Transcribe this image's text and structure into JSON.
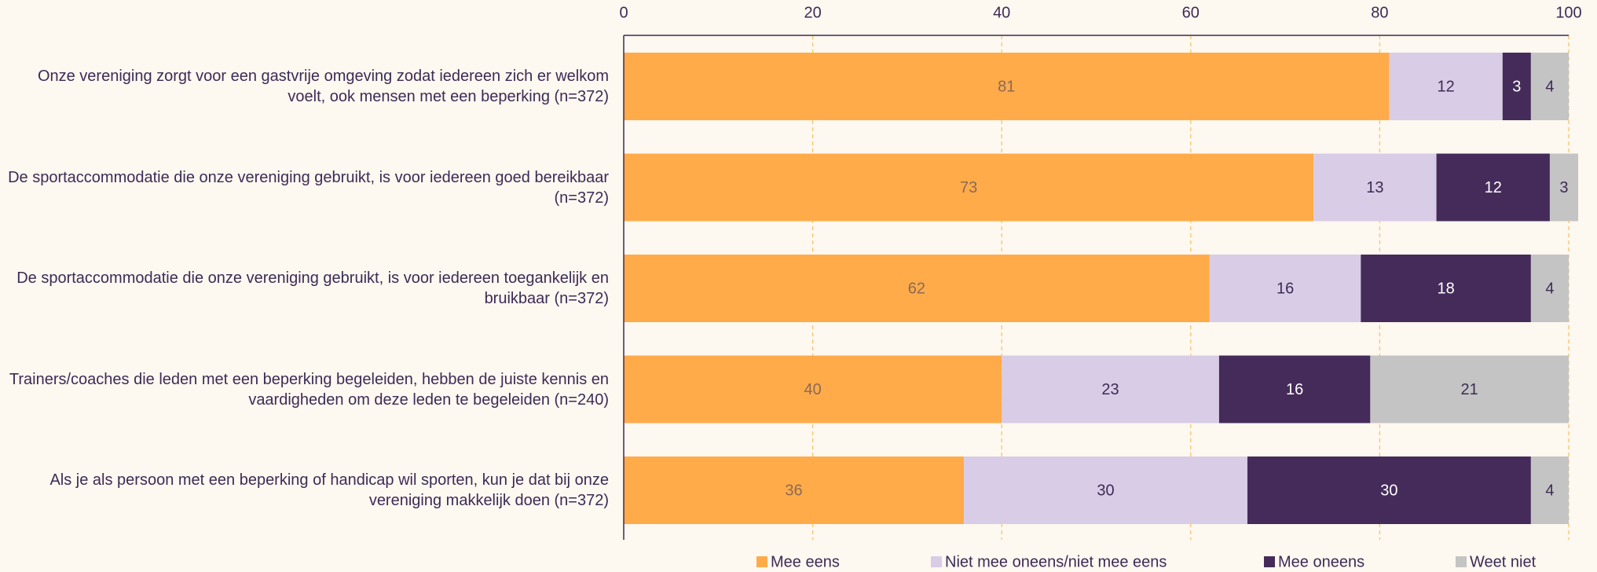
{
  "chart_data": {
    "type": "stacked-bar-horizontal",
    "categories": [
      "Onze vereniging zorgt voor een gastvrije omgeving zodat iedereen zich er welkom voelt, ook mensen met een beperking (n=372)",
      "De sportaccommodatie die onze vereniging gebruikt, is voor iedereen goed bereikbaar (n=372)",
      "De sportaccommodatie die onze vereniging gebruikt, is voor iedereen toegankelijk en bruikbaar (n=372)",
      "Trainers/coaches die leden met een beperking begeleiden, hebben de juiste kennis en vaardigheden om deze leden te begeleiden (n=240)",
      "Als je als persoon met een beperking of handicap wil sporten, kun je dat bij onze vereniging makkelijk doen (n=372)"
    ],
    "series": [
      {
        "name": "Mee eens",
        "color": "#ffab4a",
        "values": [
          81,
          73,
          62,
          40,
          36
        ]
      },
      {
        "name": "Niet mee oneens/niet mee eens",
        "color": "#d9cce6",
        "values": [
          12,
          13,
          16,
          23,
          30
        ]
      },
      {
        "name": "Mee oneens",
        "color": "#452b5a",
        "values": [
          3,
          12,
          18,
          16,
          30
        ]
      },
      {
        "name": "Weet niet",
        "color": "#c4c4c4",
        "values": [
          4,
          3,
          4,
          21,
          4
        ]
      }
    ],
    "xlim": [
      0,
      100
    ],
    "xticks": [
      0,
      20,
      40,
      60,
      80,
      100
    ],
    "grid": true,
    "legend": "bottom"
  }
}
